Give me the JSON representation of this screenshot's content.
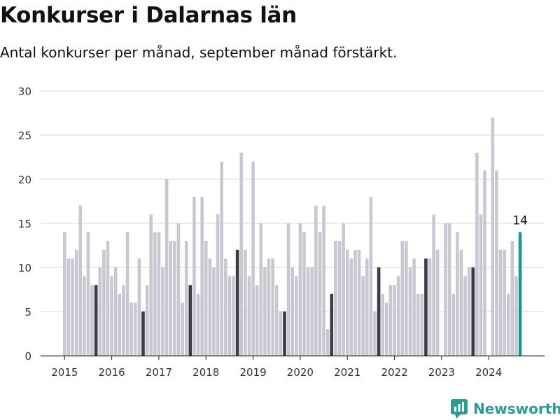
{
  "title": "Konkurser i Dalarnas län",
  "subtitle": "Antal konkurser per månad, september månad förstärkt.",
  "brand": "Newsworthy",
  "colors": {
    "bar": "#c8c8d2",
    "highlight": "#3b3b45",
    "latest": "#1a9990",
    "grid": "#d9d9d9",
    "axis": "#333333",
    "brand": "#2a9d8f"
  },
  "chart_data": {
    "type": "bar",
    "title": "Konkurser i Dalarnas län",
    "subtitle": "Antal konkurser per månad, september månad förstärkt.",
    "xlabel": "",
    "ylabel": "",
    "ylim": [
      0,
      30
    ],
    "yticks": [
      0,
      5,
      10,
      15,
      20,
      25,
      30
    ],
    "xticks": [
      "2015",
      "2016",
      "2017",
      "2018",
      "2019",
      "2020",
      "2021",
      "2022",
      "2023",
      "2024"
    ],
    "start_month": "2015-01",
    "highlight_month": "September",
    "grid": true,
    "annotation": {
      "month": "2024-09",
      "label": "14"
    },
    "values": [
      14,
      11,
      11,
      12,
      17,
      9,
      14,
      8,
      8,
      10,
      12,
      13,
      9,
      10,
      7,
      8,
      14,
      6,
      6,
      11,
      5,
      8,
      16,
      14,
      14,
      10,
      20,
      13,
      13,
      15,
      6,
      13,
      8,
      18,
      7,
      18,
      13,
      11,
      10,
      16,
      22,
      11,
      9,
      9,
      12,
      23,
      12,
      9,
      22,
      8,
      15,
      10,
      11,
      11,
      8,
      5,
      5,
      15,
      10,
      9,
      15,
      14,
      10,
      10,
      17,
      14,
      17,
      3,
      7,
      13,
      13,
      15,
      12,
      11,
      12,
      12,
      9,
      11,
      18,
      5,
      10,
      7,
      6,
      8,
      8,
      9,
      13,
      13,
      10,
      11,
      7,
      7,
      11,
      11,
      16,
      12,
      null,
      15,
      15,
      7,
      14,
      12,
      9,
      10,
      10,
      23,
      16,
      21,
      null,
      27,
      21,
      12,
      12,
      7,
      13,
      9,
      14
    ]
  }
}
